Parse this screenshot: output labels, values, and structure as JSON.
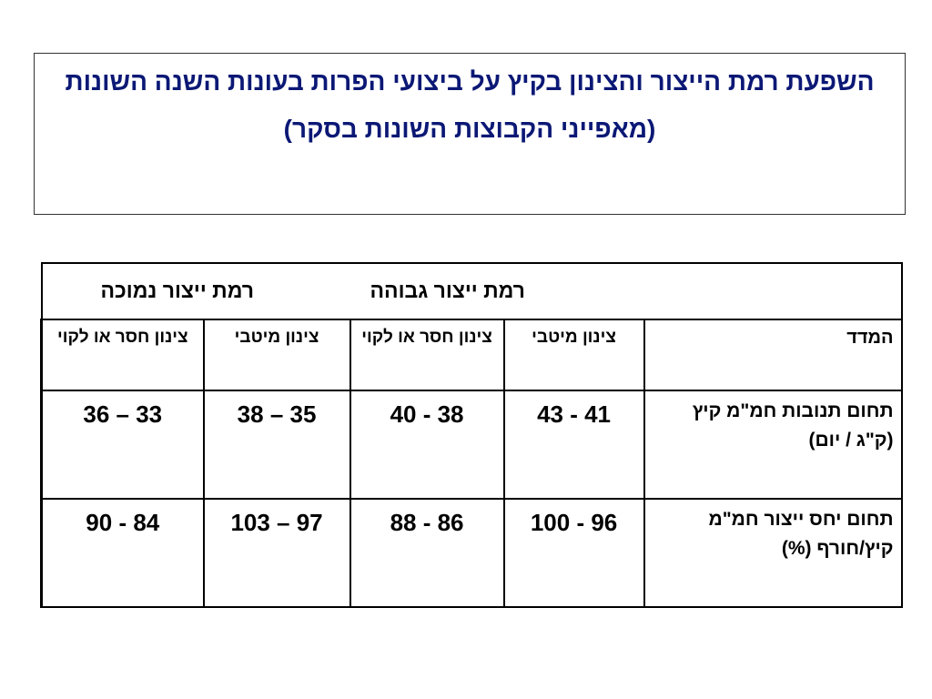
{
  "header": {
    "title": "השפעת רמת הייצור והצינון בקיץ על ביצועי הפרות בעונות השנה השונות",
    "subtitle": "(מאפייני הקבוצות השונות בסקר)"
  },
  "table": {
    "group_headers": [
      "רמת ייצור גבוהה",
      "רמת ייצור נמוכה"
    ],
    "columns": [
      "המדד",
      "צינון מיטבי",
      "צינון חסר או לקוי",
      "צינון מיטבי",
      "צינון חסר או לקוי"
    ],
    "rows": [
      [
        "תחום תנובות חמ\"מ קיץ (ק\"ג / יום)",
        "43 - 41",
        "40 - 38",
        "38 – 35",
        "36 – 33"
      ],
      [
        "תחום יחס ייצור חמ\"מ קיץ/חורף (%)",
        "100 - 96",
        "88 - 86",
        "103 – 97",
        "90 - 84"
      ]
    ]
  }
}
